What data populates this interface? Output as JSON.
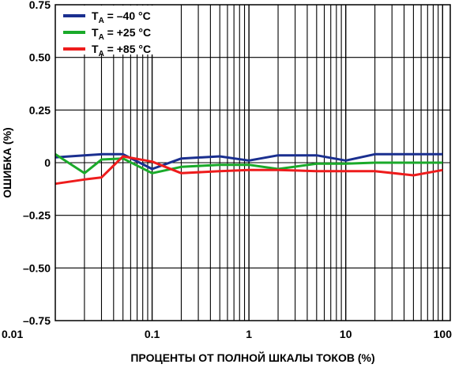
{
  "chart_data": {
    "type": "line",
    "xlabel": "ПРОЦЕНТЫ ОТ ПОЛНОЙ ШКАЛЫ ТОКОВ (%)",
    "ylabel": "ОШИБКА (%)",
    "x_scale": "log",
    "xlim": [
      0.01,
      120
    ],
    "ylim": [
      -0.75,
      0.75
    ],
    "x_ticks": [
      {
        "value": 0.01,
        "label": "0.01"
      },
      {
        "value": 0.1,
        "label": "0.1"
      },
      {
        "value": 1,
        "label": "1"
      },
      {
        "value": 10,
        "label": "10"
      },
      {
        "value": 100,
        "label": "100"
      }
    ],
    "y_ticks": [
      {
        "value": 0.75,
        "label": "0.75"
      },
      {
        "value": 0.5,
        "label": "0.50"
      },
      {
        "value": 0.25,
        "label": "0.25"
      },
      {
        "value": 0,
        "label": "0"
      },
      {
        "value": -0.25,
        "label": "–0.25"
      },
      {
        "value": -0.5,
        "label": "–0.50"
      },
      {
        "value": -0.75,
        "label": "–0.75"
      }
    ],
    "grid": true,
    "legend_position": "top-left",
    "series": [
      {
        "name": "= –40 °C",
        "legend_main": "T",
        "legend_sub": "A",
        "color": "#1a2f8f",
        "x": [
          0.01,
          0.02,
          0.03,
          0.05,
          0.1,
          0.2,
          0.5,
          1,
          2,
          5,
          10,
          20,
          50,
          100
        ],
        "y": [
          0.025,
          0.035,
          0.04,
          0.04,
          -0.03,
          0.02,
          0.03,
          0.01,
          0.035,
          0.035,
          0.01,
          0.04,
          0.04,
          0.04
        ]
      },
      {
        "name": "= +25 °C",
        "legend_main": "T",
        "legend_sub": "A",
        "color": "#1aaa2a",
        "x": [
          0.01,
          0.02,
          0.03,
          0.05,
          0.1,
          0.2,
          0.5,
          1,
          2,
          5,
          10,
          20,
          50,
          100
        ],
        "y": [
          0.04,
          -0.05,
          0.015,
          0.02,
          -0.05,
          -0.02,
          -0.01,
          -0.01,
          -0.03,
          -0.005,
          -0.005,
          0.0,
          0.0,
          0.0
        ]
      },
      {
        "name": "= +85 °C",
        "legend_main": "T",
        "legend_sub": "A",
        "color": "#ee1c1c",
        "x": [
          0.01,
          0.02,
          0.03,
          0.05,
          0.1,
          0.2,
          0.5,
          1,
          2,
          5,
          10,
          20,
          50,
          100
        ],
        "y": [
          -0.1,
          -0.08,
          -0.07,
          0.03,
          0.005,
          -0.05,
          -0.04,
          -0.035,
          -0.035,
          -0.04,
          -0.04,
          -0.04,
          -0.06,
          -0.035
        ]
      }
    ]
  }
}
